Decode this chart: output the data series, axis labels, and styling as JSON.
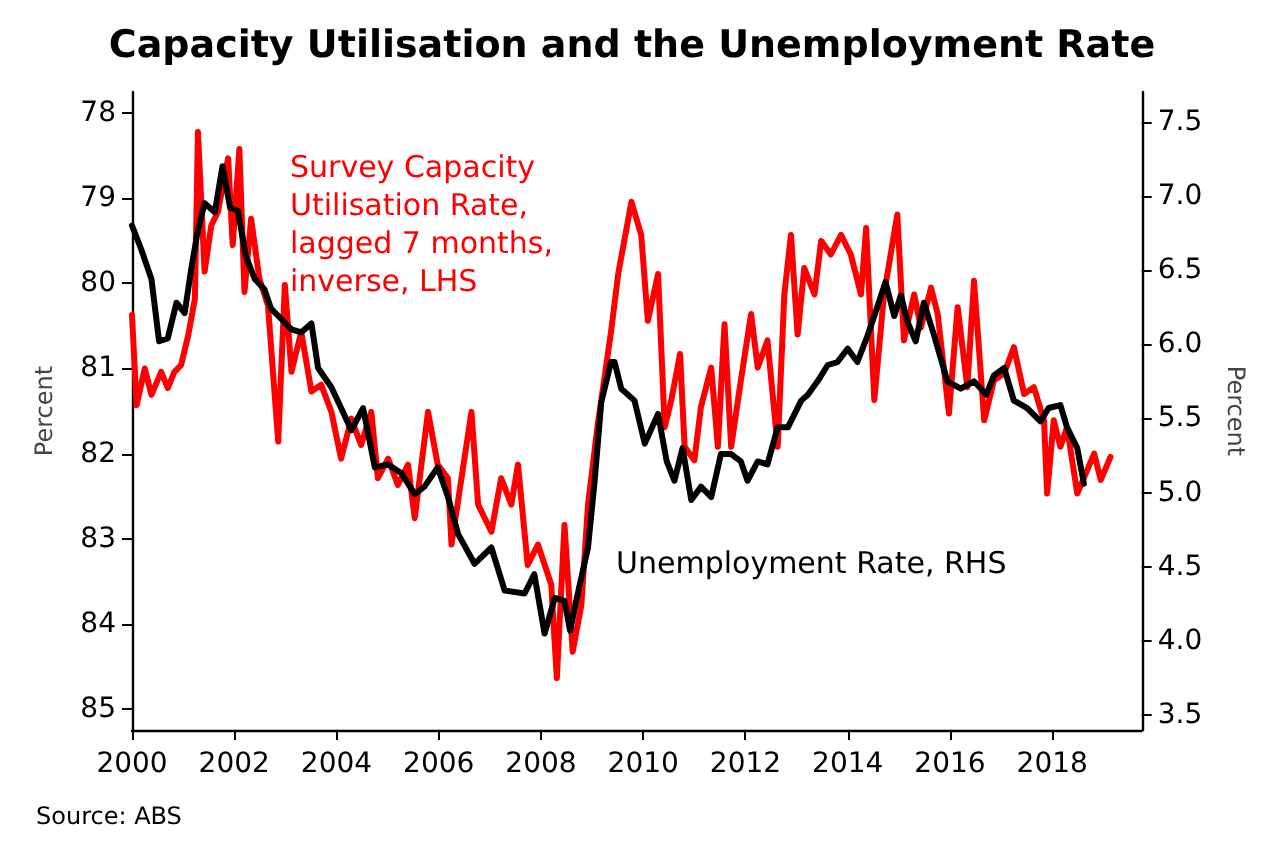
{
  "chart_data": {
    "type": "line",
    "title": "Capacity Utilisation and the Unemployment Rate",
    "ylabel": "Percent",
    "y2label": "Percent",
    "annotations": [
      "Source: ABS"
    ],
    "legend": false,
    "grid": false,
    "marker": "none",
    "line_style": "solid",
    "xlim": [
      2000,
      2019.75
    ],
    "xticks": [
      2000,
      2002,
      2004,
      2006,
      2008,
      2010,
      2012,
      2014,
      2016,
      2018
    ],
    "ylim": [
      85.25,
      77.75
    ],
    "yticks": [
      78,
      79,
      80,
      81,
      82,
      83,
      84,
      85
    ],
    "y2lim": [
      3.4,
      7.7
    ],
    "y2ticks": [
      3.5,
      {
        "value": 4,
        "label": "4.0"
      },
      4.5,
      {
        "value": 5,
        "label": "5.0"
      },
      5.5,
      {
        "value": 6,
        "label": "6.0"
      },
      6.5,
      {
        "value": 7,
        "label": "7.0"
      },
      7.5
    ],
    "series": [
      {
        "name": "Survey Capacity Utilisation Rate, lagged 7 months, inverse, LHS",
        "color": "#ff0000",
        "x": [
          2000.0,
          2000.09,
          2000.25,
          2000.38,
          2000.57,
          2000.7,
          2000.83,
          2000.96,
          2001.1,
          2001.23,
          2001.29,
          2001.42,
          2001.55,
          2001.68,
          2001.88,
          2001.97,
          2002.1,
          2002.2,
          2002.33,
          2002.49,
          2002.66,
          2002.86,
          2002.99,
          2003.12,
          2003.31,
          2003.51,
          2003.7,
          2003.9,
          2004.09,
          2004.29,
          2004.48,
          2004.68,
          2004.81,
          2005.01,
          2005.2,
          2005.4,
          2005.53,
          2005.79,
          2005.98,
          2006.18,
          2006.25,
          2006.64,
          2006.77,
          2007.03,
          2007.22,
          2007.42,
          2007.55,
          2007.74,
          2007.94,
          2008.2,
          2008.31,
          2008.46,
          2008.62,
          2008.79,
          2008.92,
          2009.11,
          2009.24,
          2009.37,
          2009.51,
          2009.77,
          2009.96,
          2010.09,
          2010.29,
          2010.42,
          2010.55,
          2010.72,
          2010.81,
          2011.0,
          2011.13,
          2011.33,
          2011.46,
          2011.59,
          2011.72,
          2011.91,
          2012.11,
          2012.24,
          2012.43,
          2012.63,
          2012.76,
          2012.89,
          2013.02,
          2013.15,
          2013.35,
          2013.48,
          2013.67,
          2013.87,
          2014.06,
          2014.26,
          2014.36,
          2014.52,
          2014.71,
          2014.97,
          2015.1,
          2015.3,
          2015.43,
          2015.63,
          2015.76,
          2015.98,
          2016.15,
          2016.34,
          2016.47,
          2016.67,
          2016.86,
          2017.06,
          2017.25,
          2017.45,
          2017.64,
          2017.84,
          2017.9,
          2018.03,
          2018.16,
          2018.29,
          2018.49,
          2018.66,
          2018.82,
          2018.95,
          2019.14
        ],
        "values": [
          80.37,
          81.43,
          81.0,
          81.31,
          81.04,
          81.23,
          81.04,
          80.96,
          80.61,
          80.18,
          78.22,
          79.86,
          79.32,
          79.16,
          78.53,
          79.55,
          78.42,
          80.1,
          79.24,
          79.94,
          80.26,
          81.86,
          80.02,
          81.04,
          80.57,
          81.27,
          81.19,
          81.51,
          82.06,
          81.59,
          81.9,
          81.51,
          82.29,
          82.06,
          82.37,
          82.13,
          82.76,
          81.51,
          82.13,
          82.29,
          83.07,
          81.51,
          82.6,
          82.92,
          82.29,
          82.6,
          82.13,
          83.31,
          83.07,
          83.54,
          84.64,
          82.84,
          84.33,
          83.78,
          82.6,
          81.66,
          81.12,
          80.57,
          79.89,
          79.04,
          79.43,
          80.44,
          79.89,
          81.69,
          81.37,
          80.83,
          81.92,
          82.08,
          81.45,
          80.99,
          81.92,
          80.48,
          81.92,
          81.14,
          80.36,
          80.99,
          80.67,
          81.92,
          80.13,
          79.43,
          80.6,
          79.82,
          80.13,
          79.5,
          79.66,
          79.43,
          79.66,
          80.13,
          79.35,
          81.37,
          80.13,
          79.19,
          80.67,
          80.13,
          80.52,
          80.05,
          80.36,
          81.53,
          80.28,
          81.22,
          79.97,
          81.61,
          81.14,
          81.06,
          80.75,
          81.3,
          81.22,
          81.61,
          82.47,
          81.61,
          81.92,
          81.69,
          82.47,
          82.23,
          82.0,
          82.31,
          82.04
        ]
      },
      {
        "name": "Unemployment Rate, RHS",
        "color": "#000000",
        "axis": "y2",
        "x": [
          2000.0,
          2000.18,
          2000.38,
          2000.53,
          2000.7,
          2000.87,
          2001.03,
          2001.16,
          2001.29,
          2001.42,
          2001.62,
          2001.77,
          2001.92,
          2002.07,
          2002.23,
          2002.4,
          2002.59,
          2002.72,
          2002.92,
          2003.12,
          2003.31,
          2003.51,
          2003.64,
          2003.9,
          2004.09,
          2004.29,
          2004.52,
          2004.75,
          2005.01,
          2005.27,
          2005.53,
          2005.72,
          2005.98,
          2006.18,
          2006.38,
          2006.7,
          2007.03,
          2007.29,
          2007.68,
          2007.87,
          2008.07,
          2008.27,
          2008.46,
          2008.57,
          2008.72,
          2008.92,
          2009.05,
          2009.18,
          2009.37,
          2009.44,
          2009.57,
          2009.83,
          2010.03,
          2010.29,
          2010.46,
          2010.61,
          2010.77,
          2010.94,
          2011.13,
          2011.33,
          2011.52,
          2011.72,
          2011.91,
          2012.04,
          2012.24,
          2012.43,
          2012.63,
          2012.83,
          2013.09,
          2013.22,
          2013.41,
          2013.61,
          2013.8,
          2014.0,
          2014.19,
          2014.39,
          2014.52,
          2014.74,
          2014.91,
          2015.04,
          2015.17,
          2015.33,
          2015.49,
          2015.69,
          2015.95,
          2016.21,
          2016.47,
          2016.71,
          2016.86,
          2017.06,
          2017.25,
          2017.51,
          2017.77,
          2017.93,
          2018.16,
          2018.29,
          2018.49,
          2018.62
        ],
        "values": [
          6.8,
          6.64,
          6.44,
          6.02,
          6.04,
          6.28,
          6.21,
          6.51,
          6.77,
          6.95,
          6.89,
          7.2,
          6.92,
          6.9,
          6.59,
          6.44,
          6.37,
          6.24,
          6.17,
          6.1,
          6.08,
          6.14,
          5.84,
          5.71,
          5.57,
          5.42,
          5.57,
          5.17,
          5.19,
          5.13,
          4.99,
          5.04,
          5.17,
          4.97,
          4.72,
          4.52,
          4.63,
          4.34,
          4.32,
          4.45,
          4.05,
          4.29,
          4.27,
          4.07,
          4.32,
          4.63,
          5.08,
          5.61,
          5.88,
          5.88,
          5.7,
          5.62,
          5.33,
          5.53,
          5.21,
          5.08,
          5.3,
          4.95,
          5.04,
          4.97,
          5.26,
          5.26,
          5.21,
          5.08,
          5.21,
          5.19,
          5.44,
          5.44,
          5.62,
          5.66,
          5.75,
          5.86,
          5.88,
          5.97,
          5.88,
          6.06,
          6.19,
          6.42,
          6.19,
          6.33,
          6.15,
          6.02,
          6.28,
          6.06,
          5.75,
          5.7,
          5.75,
          5.66,
          5.79,
          5.84,
          5.62,
          5.57,
          5.48,
          5.57,
          5.59,
          5.44,
          5.3,
          5.06
        ]
      }
    ]
  }
}
